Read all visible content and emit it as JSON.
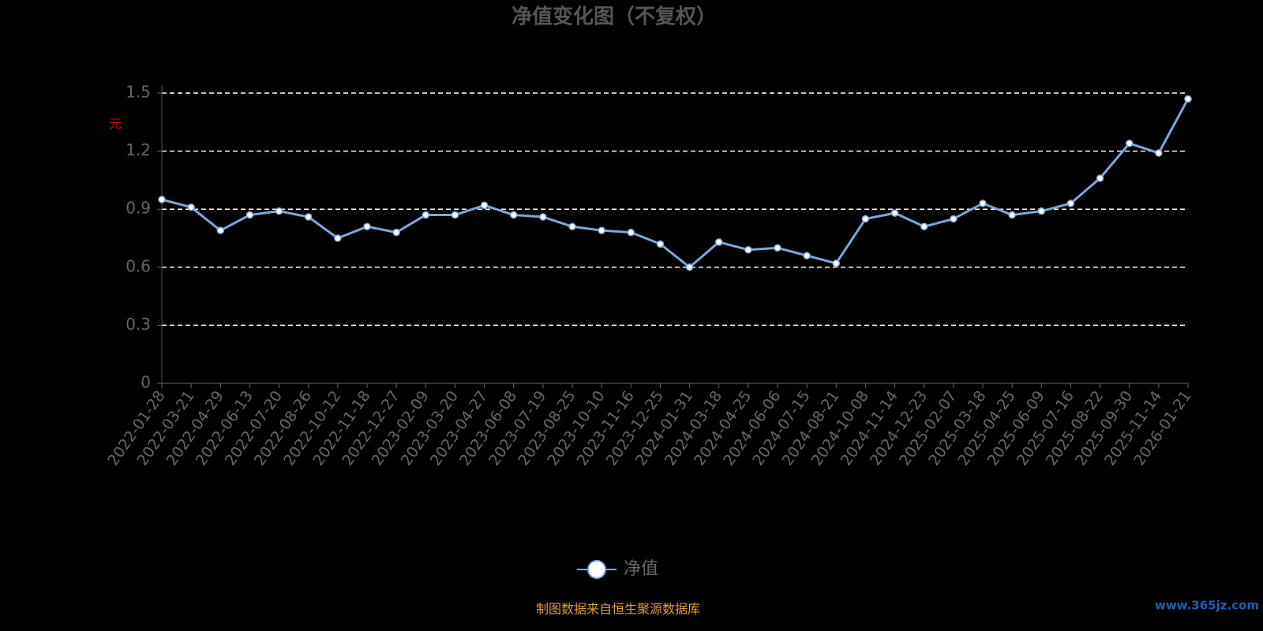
{
  "chart_data": {
    "type": "line",
    "title": "净值变化图（不复权）",
    "y_label": "元",
    "categories": [
      "2022-01-28",
      "2022-03-21",
      "2022-04-29",
      "2022-06-13",
      "2022-07-20",
      "2022-08-26",
      "2022-10-12",
      "2022-11-18",
      "2022-12-27",
      "2023-02-09",
      "2023-03-20",
      "2023-04-27",
      "2023-06-08",
      "2023-07-19",
      "2023-08-25",
      "2023-10-10",
      "2023-11-16",
      "2023-12-25",
      "2024-01-31",
      "2024-03-18",
      "2024-04-25",
      "2024-06-06",
      "2024-07-15",
      "2024-08-21",
      "2024-10-08",
      "2024-11-14",
      "2024-12-23",
      "2025-02-07",
      "2025-03-18",
      "2025-04-25",
      "2025-06-09",
      "2025-07-16",
      "2025-08-22",
      "2025-09-30",
      "2025-11-14",
      "2026-01-21"
    ],
    "series": [
      {
        "name": "净值",
        "color": "#7fa6da",
        "values": [
          0.95,
          0.91,
          0.79,
          0.87,
          0.89,
          0.86,
          0.75,
          0.81,
          0.78,
          0.87,
          0.87,
          0.92,
          0.87,
          0.86,
          0.81,
          0.79,
          0.78,
          0.72,
          0.6,
          0.73,
          0.69,
          0.7,
          0.66,
          0.62,
          0.85,
          0.88,
          0.81,
          0.85,
          0.93,
          0.87,
          0.89,
          0.93,
          1.06,
          1.24,
          1.19,
          1.47
        ]
      }
    ],
    "ylim": [
      0,
      1.5
    ],
    "yticks": [
      0,
      0.3,
      0.6,
      0.9,
      1.2,
      1.5
    ],
    "grid": true,
    "footer": "制图数据来自恒生聚源数据库",
    "watermark": "www.365jz.com"
  }
}
